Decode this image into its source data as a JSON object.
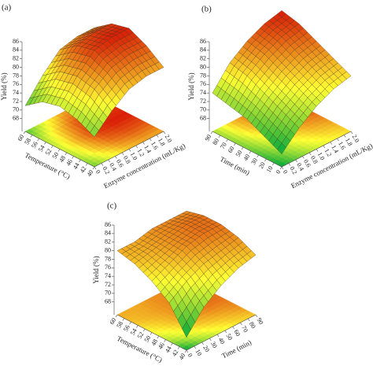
{
  "chart_data": [
    {
      "type": "surface",
      "label": "(a)",
      "zlabel": "Yield (%)",
      "xlabel": "Temperature (°C)",
      "ylabel": "Enzyme concentration (mL/Kg)",
      "colors": [
        "#00a83a",
        "#ffff33",
        "#d40000"
      ],
      "x": [
        40,
        45,
        50,
        55,
        60
      ],
      "y": [
        0,
        0.5,
        1,
        1.5,
        2
      ],
      "z": [
        [
          72,
          76,
          79,
          80,
          80
        ],
        [
          74,
          79,
          82,
          83,
          83
        ],
        [
          75,
          80,
          84,
          85,
          85
        ],
        [
          74,
          79,
          83,
          84,
          84
        ],
        [
          71,
          76,
          80,
          81,
          81
        ]
      ],
      "xlim": [
        40,
        60
      ],
      "ylim": [
        0,
        2
      ],
      "zlim": [
        65,
        86
      ],
      "xticks": [
        40,
        42,
        44,
        46,
        48,
        50,
        52,
        54,
        56,
        58,
        60
      ],
      "yticks": [
        0,
        0.2,
        0.4,
        0.6,
        0.8,
        {
          "value": 1,
          "label": "1.0"
        },
        1.2,
        1.4,
        1.6,
        1.8,
        {
          "value": 2,
          "label": "2.0"
        }
      ],
      "zticks": [
        68,
        70,
        72,
        74,
        76,
        78,
        80,
        82,
        84,
        86
      ]
    },
    {
      "type": "surface",
      "label": "(b)",
      "zlabel": "Yield (%)",
      "xlabel": "Time (min)",
      "ylabel": "Enzyme concentration (mL/Kg)",
      "colors": [
        "#00a83a",
        "#ffff33",
        "#d40000"
      ],
      "x": [
        0,
        22.5,
        45,
        67.5,
        90
      ],
      "y": [
        0,
        0.5,
        1,
        1.5,
        2
      ],
      "z": [
        [
          68,
          72,
          75,
          77,
          78
        ],
        [
          70,
          74,
          77,
          79,
          80
        ],
        [
          72,
          76,
          79,
          81,
          82
        ],
        [
          73,
          78,
          81,
          83,
          84
        ],
        [
          74,
          79,
          82,
          84,
          85
        ]
      ],
      "xlim": [
        0,
        90
      ],
      "ylim": [
        0,
        2
      ],
      "zlim": [
        65,
        86
      ],
      "xticks": [
        0,
        10,
        20,
        30,
        40,
        50,
        60,
        70,
        80,
        90
      ],
      "yticks": [
        0,
        0.2,
        0.4,
        0.6,
        0.8,
        {
          "value": 1,
          "label": "1.0"
        },
        1.2,
        1.4,
        1.6,
        1.8,
        {
          "value": 2,
          "label": "2.0"
        }
      ],
      "zticks": [
        68,
        70,
        72,
        74,
        76,
        78,
        80,
        82,
        84,
        86
      ]
    },
    {
      "type": "surface",
      "label": "(c)",
      "zlabel": "Yield (%)",
      "xlabel": "Temperature (°C)",
      "ylabel": "Time (min)",
      "colors": [
        "#00a83a",
        "#ffff33",
        "#d40000"
      ],
      "x": [
        40,
        45,
        50,
        55,
        60
      ],
      "y": [
        0,
        22.5,
        45,
        67.5,
        90
      ],
      "z": [
        [
          68,
          73,
          76,
          78,
          79
        ],
        [
          74,
          77,
          79,
          80,
          81
        ],
        [
          77,
          79,
          81,
          82,
          82
        ],
        [
          79,
          80,
          81,
          82,
          82
        ],
        [
          80,
          80,
          81,
          81,
          81
        ]
      ],
      "xlim": [
        40,
        60
      ],
      "ylim": [
        0,
        90
      ],
      "zlim": [
        65,
        86
      ],
      "xticks": [
        40,
        42,
        44,
        46,
        48,
        50,
        52,
        54,
        56,
        58,
        60
      ],
      "yticks": [
        0,
        10,
        20,
        30,
        40,
        50,
        60,
        70,
        80,
        90
      ],
      "zticks": [
        68,
        70,
        72,
        74,
        76,
        78,
        80,
        82,
        84,
        86
      ]
    }
  ]
}
